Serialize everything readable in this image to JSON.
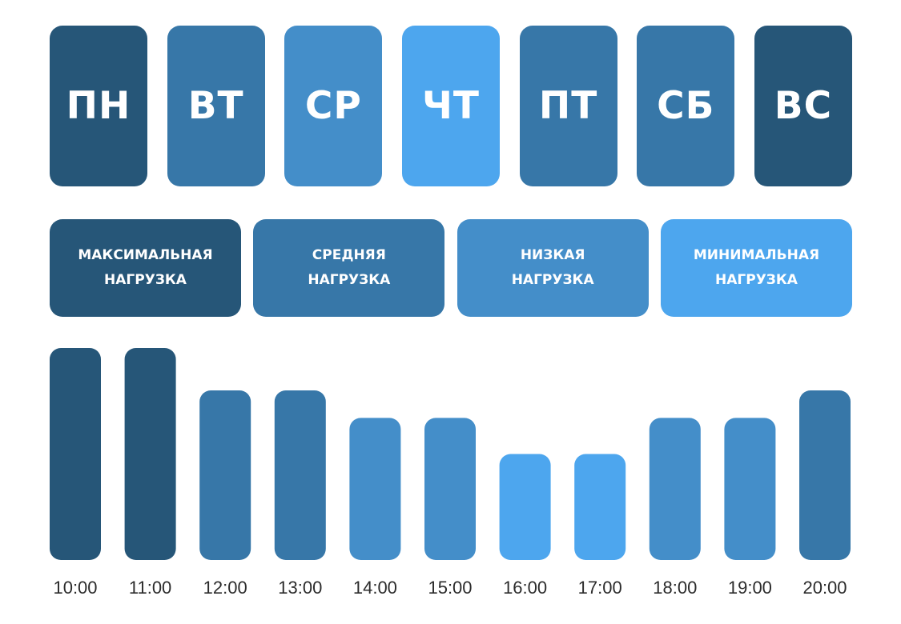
{
  "colors": {
    "level1": "#265678",
    "level2": "#3777a8",
    "level3": "#448ec9",
    "level4": "#4da6ee"
  },
  "days": [
    {
      "label": "ПН",
      "level": 1
    },
    {
      "label": "ВТ",
      "level": 2
    },
    {
      "label": "СР",
      "level": 3
    },
    {
      "label": "ЧТ",
      "level": 4
    },
    {
      "label": "ПТ",
      "level": 2
    },
    {
      "label": "СБ",
      "level": 2
    },
    {
      "label": "ВС",
      "level": 1
    }
  ],
  "legend": [
    {
      "line1": "МАКСИМАЛЬНАЯ",
      "line2": "НАГРУЗКА",
      "level": 1
    },
    {
      "line1": "СРЕДНЯЯ",
      "line2": "НАГРУЗКА",
      "level": 2
    },
    {
      "line1": "НИЗКАЯ",
      "line2": "НАГРУЗКА",
      "level": 3
    },
    {
      "line1": "МИНИМАЛЬНАЯ",
      "line2": "НАГРУЗКА",
      "level": 4
    }
  ],
  "chart_data": {
    "type": "bar",
    "categories": [
      "10:00",
      "11:00",
      "12:00",
      "13:00",
      "14:00",
      "15:00",
      "16:00",
      "17:00",
      "18:00",
      "19:00",
      "20:00"
    ],
    "values": [
      100,
      100,
      80,
      80,
      67,
      67,
      50,
      50,
      67,
      67,
      80
    ],
    "levels": [
      1,
      1,
      2,
      2,
      3,
      3,
      4,
      4,
      3,
      3,
      2
    ],
    "ylim": [
      0,
      100
    ],
    "grid": false,
    "title": "",
    "xlabel": "",
    "ylabel": ""
  }
}
